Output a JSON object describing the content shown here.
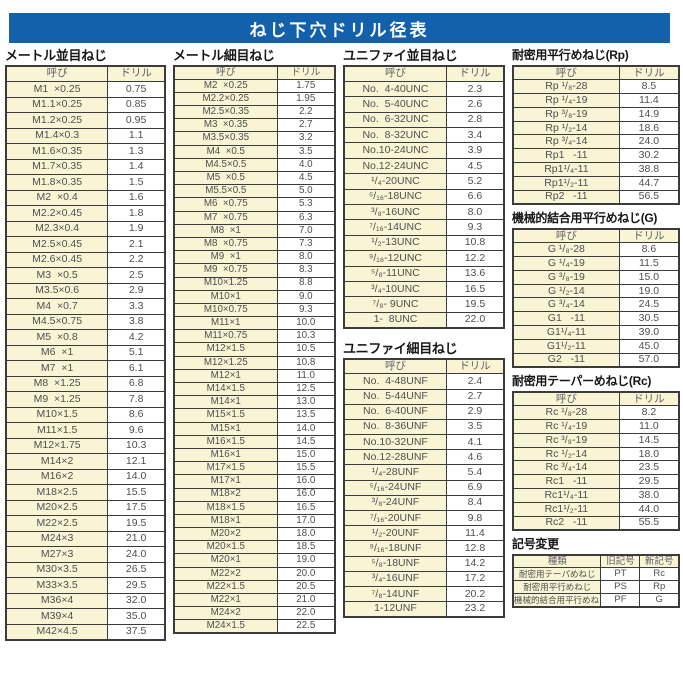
{
  "title": "ねじ下穴ドリル径表",
  "colors": {
    "title_bg": "#1261aa",
    "title_text": "#ffffff",
    "cell_yellow": "#f8f4d4",
    "border": "#3c3c3c",
    "cell_text": "#4f4f4f",
    "header_text": "#5c6066",
    "section_title": "#161616"
  },
  "sections": {
    "metric_coarse": {
      "title": "メートル並目ねじ",
      "headers": [
        "呼び",
        "ドリル"
      ],
      "rows": [
        [
          "M1  ×0.25",
          "0.75"
        ],
        [
          "M1.1×0.25",
          "0.85"
        ],
        [
          "M1.2×0.25",
          "0.95"
        ],
        [
          "M1.4×0.3",
          "1.1"
        ],
        [
          "M1.6×0.35",
          "1.3"
        ],
        [
          "M1.7×0.35",
          "1.4"
        ],
        [
          "M1.8×0.35",
          "1.5"
        ],
        [
          "M2  ×0.4",
          "1.6"
        ],
        [
          "M2.2×0.45",
          "1.8"
        ],
        [
          "M2.3×0.4",
          "1.9"
        ],
        [
          "M2.5×0.45",
          "2.1"
        ],
        [
          "M2.6×0.45",
          "2.2"
        ],
        [
          "M3  ×0.5",
          "2.5"
        ],
        [
          "M3.5×0.6",
          "2.9"
        ],
        [
          "M4  ×0.7",
          "3.3"
        ],
        [
          "M4.5×0.75",
          "3.8"
        ],
        [
          "M5  ×0.8",
          "4.2"
        ],
        [
          "M6  ×1",
          "5.1"
        ],
        [
          "M7  ×1",
          "6.1"
        ],
        [
          "M8  ×1.25",
          "6.8"
        ],
        [
          "M9  ×1.25",
          "7.8"
        ],
        [
          "M10×1.5",
          "8.6"
        ],
        [
          "M11×1.5",
          "9.6"
        ],
        [
          "M12×1.75",
          "10.3"
        ],
        [
          "M14×2",
          "12.1"
        ],
        [
          "M16×2",
          "14.0"
        ],
        [
          "M18×2.5",
          "15.5"
        ],
        [
          "M20×2.5",
          "17.5"
        ],
        [
          "M22×2.5",
          "19.5"
        ],
        [
          "M24×3",
          "21.0"
        ],
        [
          "M27×3",
          "24.0"
        ],
        [
          "M30×3.5",
          "26.5"
        ],
        [
          "M33×3.5",
          "29.5"
        ],
        [
          "M36×4",
          "32.0"
        ],
        [
          "M39×4",
          "35.0"
        ],
        [
          "M42×4.5",
          "37.5"
        ]
      ]
    },
    "metric_fine": {
      "title": "メートル細目ねじ",
      "headers": [
        "呼び",
        "ドリル"
      ],
      "rows": [
        [
          "M2  ×0.25",
          "1.75"
        ],
        [
          "M2.2×0.25",
          "1.95"
        ],
        [
          "M2.5×0.35",
          "2.2"
        ],
        [
          "M3  ×0.35",
          "2.7"
        ],
        [
          "M3.5×0.35",
          "3.2"
        ],
        [
          "M4  ×0.5",
          "3.5"
        ],
        [
          "M4.5×0.5",
          "4.0"
        ],
        [
          "M5  ×0.5",
          "4.5"
        ],
        [
          "M5.5×0.5",
          "5.0"
        ],
        [
          "M6  ×0.75",
          "5.3"
        ],
        [
          "M7  ×0.75",
          "6.3"
        ],
        [
          "M8  ×1",
          "7.0"
        ],
        [
          "M8  ×0.75",
          "7.3"
        ],
        [
          "M9  ×1",
          "8.0"
        ],
        [
          "M9  ×0.75",
          "8.3"
        ],
        [
          "M10×1.25",
          "8.8"
        ],
        [
          "M10×1",
          "9.0"
        ],
        [
          "M10×0.75",
          "9.3"
        ],
        [
          "M11×1",
          "10.0"
        ],
        [
          "M11×0.75",
          "10.3"
        ],
        [
          "M12×1.5",
          "10.5"
        ],
        [
          "M12×1.25",
          "10.8"
        ],
        [
          "M12×1",
          "11.0"
        ],
        [
          "M14×1.5",
          "12.5"
        ],
        [
          "M14×1",
          "13.0"
        ],
        [
          "M15×1.5",
          "13.5"
        ],
        [
          "M15×1",
          "14.0"
        ],
        [
          "M16×1.5",
          "14.5"
        ],
        [
          "M16×1",
          "15.0"
        ],
        [
          "M17×1.5",
          "15.5"
        ],
        [
          "M17×1",
          "16.0"
        ],
        [
          "M18×2",
          "16.0"
        ],
        [
          "M18×1.5",
          "16.5"
        ],
        [
          "M18×1",
          "17.0"
        ],
        [
          "M20×2",
          "18.0"
        ],
        [
          "M20×1.5",
          "18.5"
        ],
        [
          "M20×1",
          "19.0"
        ],
        [
          "M22×2",
          "20.0"
        ],
        [
          "M22×1.5",
          "20.5"
        ],
        [
          "M22×1",
          "21.0"
        ],
        [
          "M24×2",
          "22.0"
        ],
        [
          "M24×1.5",
          "22.5"
        ]
      ]
    },
    "unified_coarse": {
      "title": "ユニファイ並目ねじ",
      "headers": [
        "呼び",
        "ドリル"
      ],
      "rows": [
        [
          "No.  4-40UNC",
          "2.3"
        ],
        [
          "No.  5-40UNC",
          "2.6"
        ],
        [
          "No.  6-32UNC",
          "2.8"
        ],
        [
          "No.  8-32UNC",
          "3.4"
        ],
        [
          "No.10-24UNC",
          "3.9"
        ],
        [
          "No.12-24UNC",
          "4.5"
        ],
        [
          "¹/₄-20UNC",
          "5.2"
        ],
        [
          "⁵/₁₆-18UNC",
          "6.6"
        ],
        [
          "³/₈-16UNC",
          "8.0"
        ],
        [
          "⁷/₁₆-14UNC",
          "9.3"
        ],
        [
          "¹/₂-13UNC",
          "10.8"
        ],
        [
          "⁹/₁₆-12UNC",
          "12.2"
        ],
        [
          "⁵/₈-11UNC",
          "13.6"
        ],
        [
          "³/₄-10UNC",
          "16.5"
        ],
        [
          "⁷/₈- 9UNC",
          "19.5"
        ],
        [
          "1-  8UNC",
          "22.0"
        ]
      ]
    },
    "unified_fine": {
      "title": "ユニファイ細目ねじ",
      "headers": [
        "呼び",
        "ドリル"
      ],
      "rows": [
        [
          "No.  4-48UNF",
          "2.4"
        ],
        [
          "No.  5-44UNF",
          "2.7"
        ],
        [
          "No.  6-40UNF",
          "2.9"
        ],
        [
          "No.  8-36UNF",
          "3.5"
        ],
        [
          "No.10-32UNF",
          "4.1"
        ],
        [
          "No.12-28UNF",
          "4.6"
        ],
        [
          "¹/₄-28UNF",
          "5.4"
        ],
        [
          "⁵/₁₆-24UNF",
          "6.9"
        ],
        [
          "³/₈-24UNF",
          "8.4"
        ],
        [
          "⁷/₁₆-20UNF",
          "9.8"
        ],
        [
          "¹/₂-20UNF",
          "11.4"
        ],
        [
          "⁹/₁₆-18UNF",
          "12.8"
        ],
        [
          "⁵/₈-18UNF",
          "14.2"
        ],
        [
          "³/₄-16UNF",
          "17.2"
        ],
        [
          "⁷/₈-14UNF",
          "20.2"
        ],
        [
          "1-12UNF",
          "23.2"
        ]
      ]
    },
    "rp": {
      "title": "耐密用平行めねじ(Rp)",
      "headers": [
        "呼び",
        "ドリル"
      ],
      "rows": [
        [
          "Rp ¹/₈-28",
          "8.5"
        ],
        [
          "Rp ¹/₄-19",
          "11.4"
        ],
        [
          "Rp ³/₈-19",
          "14.9"
        ],
        [
          "Rp ¹/₂-14",
          "18.6"
        ],
        [
          "Rp ³/₄-14",
          "24.0"
        ],
        [
          "Rp1   -11",
          "30.2"
        ],
        [
          "Rp1¹/₄-11",
          "38.8"
        ],
        [
          "Rp1¹/₂-11",
          "44.7"
        ],
        [
          "Rp2   -11",
          "56.5"
        ]
      ]
    },
    "g": {
      "title": "機械的結合用平行めねじ(G)",
      "headers": [
        "呼び",
        "ドリル"
      ],
      "rows": [
        [
          "G ¹/₈-28",
          "8.6"
        ],
        [
          "G ¹/₄-19",
          "11.5"
        ],
        [
          "G ³/₈-19",
          "15.0"
        ],
        [
          "G ¹/₂-14",
          "19.0"
        ],
        [
          "G ³/₄-14",
          "24.5"
        ],
        [
          "G1   -11",
          "30.5"
        ],
        [
          "G1¹/₄-11",
          "39.0"
        ],
        [
          "G1¹/₂-11",
          "45.0"
        ],
        [
          "G2   -11",
          "57.0"
        ]
      ]
    },
    "rc": {
      "title": "耐密用テーパーめねじ(Rc)",
      "headers": [
        "呼び",
        "ドリル"
      ],
      "rows": [
        [
          "Rc ¹/₈-28",
          "8.2"
        ],
        [
          "Rc ¹/₄-19",
          "11.0"
        ],
        [
          "Rc ³/₈-19",
          "14.5"
        ],
        [
          "Rc ¹/₂-14",
          "18.0"
        ],
        [
          "Rc ³/₄-14",
          "23.5"
        ],
        [
          "Rc1   -11",
          "29.5"
        ],
        [
          "Rc1¹/₄-11",
          "38.0"
        ],
        [
          "Rc1¹/₂-11",
          "44.0"
        ],
        [
          "Rc2   -11",
          "55.5"
        ]
      ]
    },
    "symbol_change": {
      "title": "記号変更",
      "headers": [
        "種類",
        "旧記号",
        "新記号"
      ],
      "rows": [
        [
          "耐密用テーパめねじ",
          "PT",
          "Rc"
        ],
        [
          "耐密用平行めねじ",
          "PS",
          "Rp"
        ],
        [
          "機械的結合用平行めねじ",
          "PF",
          "G"
        ]
      ]
    }
  }
}
